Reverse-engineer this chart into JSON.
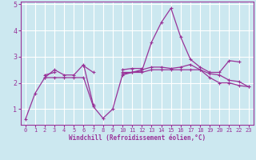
{
  "xlabel": "Windchill (Refroidissement éolien,°C)",
  "background_color": "#cce8f0",
  "grid_color": "#ffffff",
  "line_color": "#993399",
  "spine_color": "#993399",
  "xlim": [
    -0.5,
    23.5
  ],
  "ylim": [
    0.4,
    5.1
  ],
  "yticks": [
    1,
    2,
    3,
    4,
    5
  ],
  "xticks": [
    0,
    1,
    2,
    3,
    4,
    5,
    6,
    7,
    8,
    9,
    10,
    11,
    12,
    13,
    14,
    15,
    16,
    17,
    18,
    19,
    20,
    21,
    22,
    23
  ],
  "series": [
    [
      0.6,
      1.6,
      2.2,
      2.2,
      2.2,
      2.2,
      2.2,
      1.1,
      0.65,
      1.0,
      2.3,
      2.4,
      2.4,
      2.5,
      2.5,
      2.5,
      2.5,
      2.5,
      2.5,
      2.2,
      2.0,
      2.0,
      1.9,
      1.85
    ],
    [
      null,
      null,
      2.2,
      2.5,
      2.3,
      2.3,
      2.7,
      1.15,
      null,
      null,
      2.4,
      2.4,
      2.45,
      3.55,
      4.3,
      4.85,
      3.75,
      2.9,
      2.6,
      2.4,
      2.4,
      2.85,
      2.8,
      null
    ],
    [
      null,
      null,
      2.3,
      2.4,
      null,
      null,
      2.65,
      2.4,
      null,
      null,
      2.5,
      2.55,
      2.55,
      null,
      null,
      null,
      null,
      null,
      null,
      null,
      null,
      null,
      null,
      null
    ],
    [
      null,
      null,
      null,
      null,
      null,
      null,
      null,
      null,
      null,
      null,
      2.35,
      2.4,
      2.5,
      2.6,
      2.6,
      2.55,
      2.6,
      2.7,
      2.5,
      2.35,
      2.3,
      2.1,
      2.05,
      1.85
    ]
  ]
}
